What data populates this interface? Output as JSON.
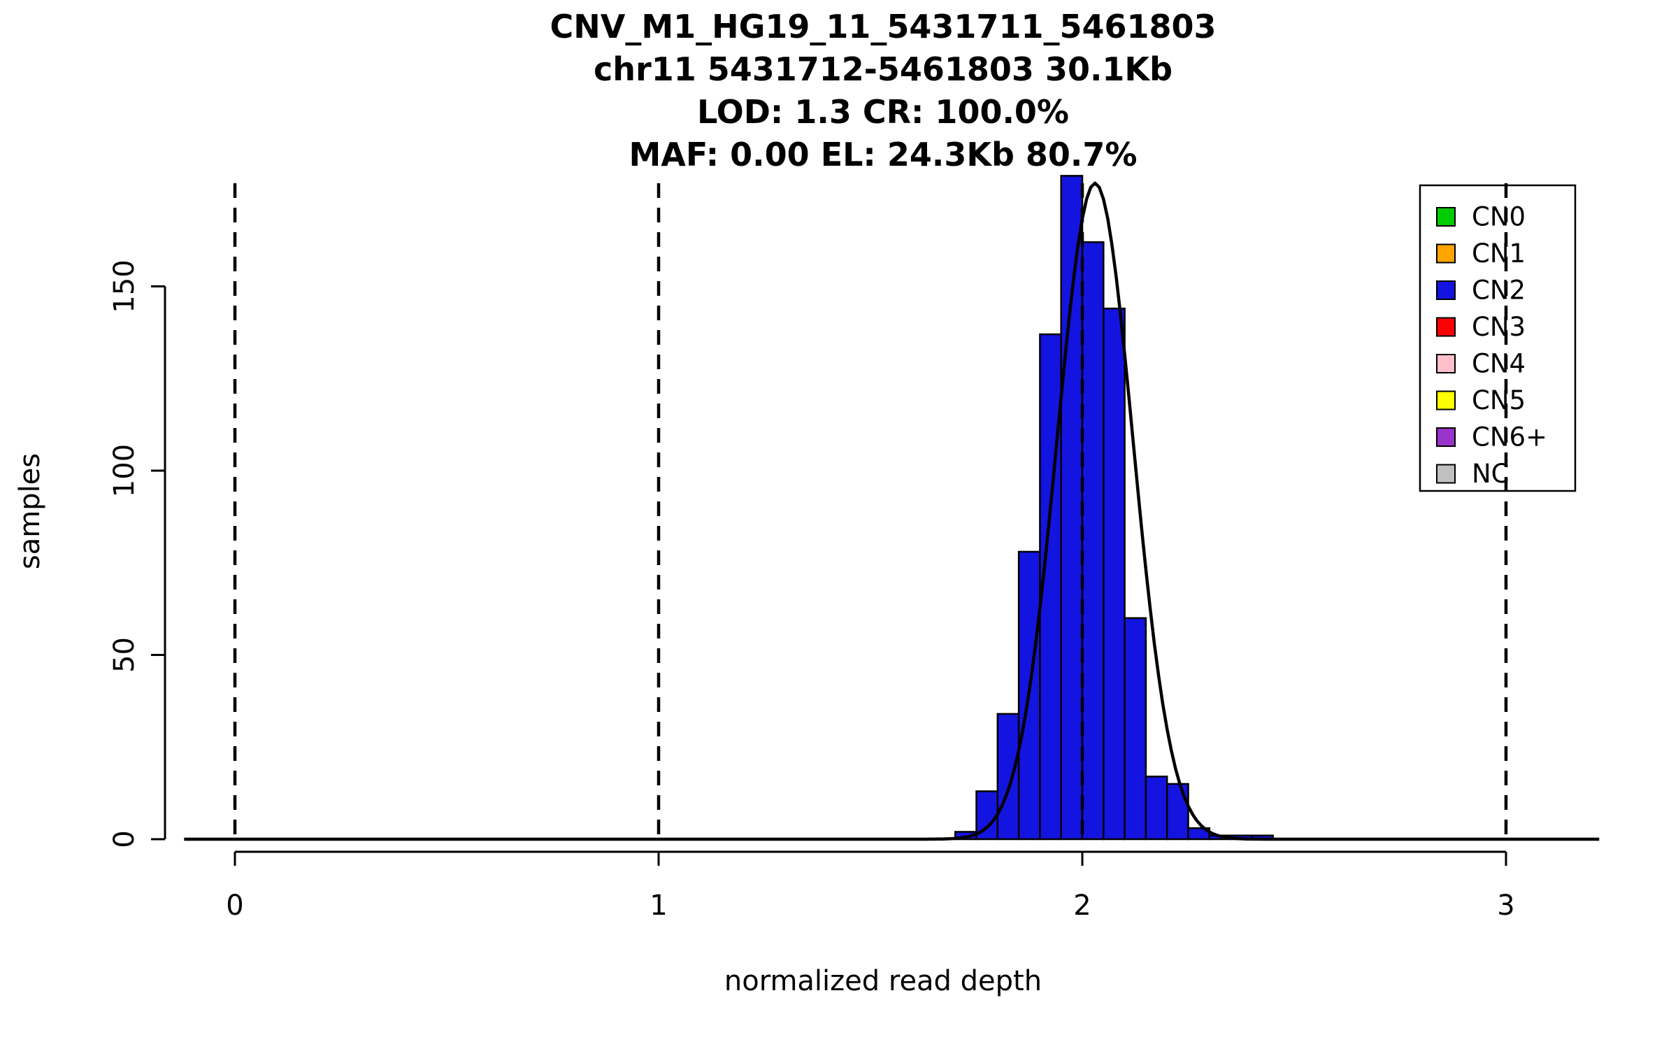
{
  "title_lines": [
    "CNV_M1_HG19_11_5431711_5461803",
    "chr11 5431712-5461803 30.1Kb",
    "LOD: 1.3 CR: 100.0%",
    "MAF: 0.00 EL: 24.3Kb 80.7%"
  ],
  "chart_data": {
    "type": "bar",
    "subtype": "histogram_with_density_curve",
    "title": "CNV_M1_HG19_11_5431711_5461803 / chr11 5431712-5461803 30.1Kb / LOD: 1.3 CR: 100.0% / MAF: 0.00 EL: 24.3Kb 80.7%",
    "xlabel": "normalized read depth",
    "ylabel": "samples",
    "x_ticks": [
      0,
      1,
      2,
      3
    ],
    "y_ticks": [
      0,
      50,
      100,
      150
    ],
    "xlim": [
      -0.17,
      3.23
    ],
    "ylim": [
      0,
      178
    ],
    "grid": false,
    "bin_start": 1.7,
    "bin_width": 0.05,
    "bin_counts": [
      2,
      13,
      34,
      78,
      137,
      180,
      162,
      144,
      60,
      17,
      15,
      3,
      1,
      1,
      1
    ],
    "bar_color": "#1414e0",
    "bar_edge_color": "#000000",
    "density_curve": {
      "mean": 2.03,
      "sd": 0.09,
      "peak": 178,
      "x_range": [
        -0.12,
        3.22
      ],
      "color": "#000000"
    },
    "dashed_guides_x": [
      0,
      1,
      2,
      3
    ],
    "legend": {
      "position": "top-right",
      "entries": [
        {
          "label": "CN0",
          "color": "#00cc00"
        },
        {
          "label": "CN1",
          "color": "#ffa500"
        },
        {
          "label": "CN2",
          "color": "#1414e0"
        },
        {
          "label": "CN3",
          "color": "#ff0000"
        },
        {
          "label": "CN4",
          "color": "#ffc0cb"
        },
        {
          "label": "CN5",
          "color": "#ffff00"
        },
        {
          "label": "CN6+",
          "color": "#9933cc"
        },
        {
          "label": "NC",
          "color": "#c0c0c0"
        }
      ]
    }
  }
}
